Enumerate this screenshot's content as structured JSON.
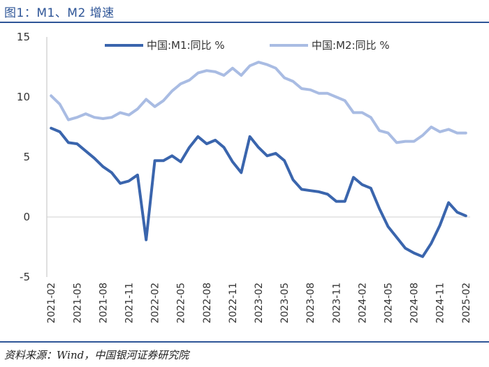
{
  "title": "图1：M1、M2 增速",
  "source": "资料来源：Wind，中国银河证券研究院",
  "chart_data": {
    "type": "line",
    "x": [
      "2021-02",
      "2021-03",
      "2021-04",
      "2021-05",
      "2021-06",
      "2021-07",
      "2021-08",
      "2021-09",
      "2021-10",
      "2021-11",
      "2021-12",
      "2022-01",
      "2022-02",
      "2022-03",
      "2022-04",
      "2022-05",
      "2022-06",
      "2022-07",
      "2022-08",
      "2022-09",
      "2022-10",
      "2022-11",
      "2022-12",
      "2023-01",
      "2023-02",
      "2023-03",
      "2023-04",
      "2023-05",
      "2023-06",
      "2023-07",
      "2023-08",
      "2023-09",
      "2023-10",
      "2023-11",
      "2023-12",
      "2024-01",
      "2024-02",
      "2024-03",
      "2024-04",
      "2024-05",
      "2024-06",
      "2024-07",
      "2024-08",
      "2024-09",
      "2024-10",
      "2024-11",
      "2024-12",
      "2025-01",
      "2025-02"
    ],
    "tick_labels": [
      "2021-02",
      "2021-05",
      "2021-08",
      "2021-11",
      "2022-02",
      "2022-05",
      "2022-08",
      "2022-11",
      "2023-02",
      "2023-05",
      "2023-08",
      "2023-11",
      "2024-02",
      "2024-05",
      "2024-08",
      "2024-11",
      "2025-02"
    ],
    "ylim": [
      -5,
      15
    ],
    "yticks": [
      -5,
      0,
      5,
      10,
      15
    ],
    "legend_position": "top",
    "series": [
      {
        "name": "中国:M1:同比 %",
        "color": "#3a65ad",
        "values": [
          7.4,
          7.1,
          6.2,
          6.1,
          5.5,
          4.9,
          4.2,
          3.7,
          2.8,
          3.0,
          3.5,
          -1.9,
          4.7,
          4.7,
          5.1,
          4.6,
          5.8,
          6.7,
          6.1,
          6.4,
          5.8,
          4.6,
          3.7,
          6.7,
          5.8,
          5.1,
          5.3,
          4.7,
          3.1,
          2.3,
          2.2,
          2.1,
          1.9,
          1.3,
          1.3,
          3.3,
          2.7,
          2.4,
          0.7,
          -0.8,
          -1.7,
          -2.6,
          -3.0,
          -3.3,
          -2.2,
          -0.7,
          1.2,
          0.4,
          0.1
        ]
      },
      {
        "name": "中国:M2:同比 %",
        "color": "#a9bce3",
        "values": [
          10.1,
          9.4,
          8.1,
          8.3,
          8.6,
          8.3,
          8.2,
          8.3,
          8.7,
          8.5,
          9.0,
          9.8,
          9.2,
          9.7,
          10.5,
          11.1,
          11.4,
          12.0,
          12.2,
          12.1,
          11.8,
          12.4,
          11.8,
          12.6,
          12.9,
          12.7,
          12.4,
          11.6,
          11.3,
          10.7,
          10.6,
          10.3,
          10.3,
          10.0,
          9.7,
          8.7,
          8.7,
          8.3,
          7.2,
          7.0,
          6.2,
          6.3,
          6.3,
          6.8,
          7.5,
          7.1,
          7.3,
          7.0,
          7.0
        ]
      }
    ]
  }
}
